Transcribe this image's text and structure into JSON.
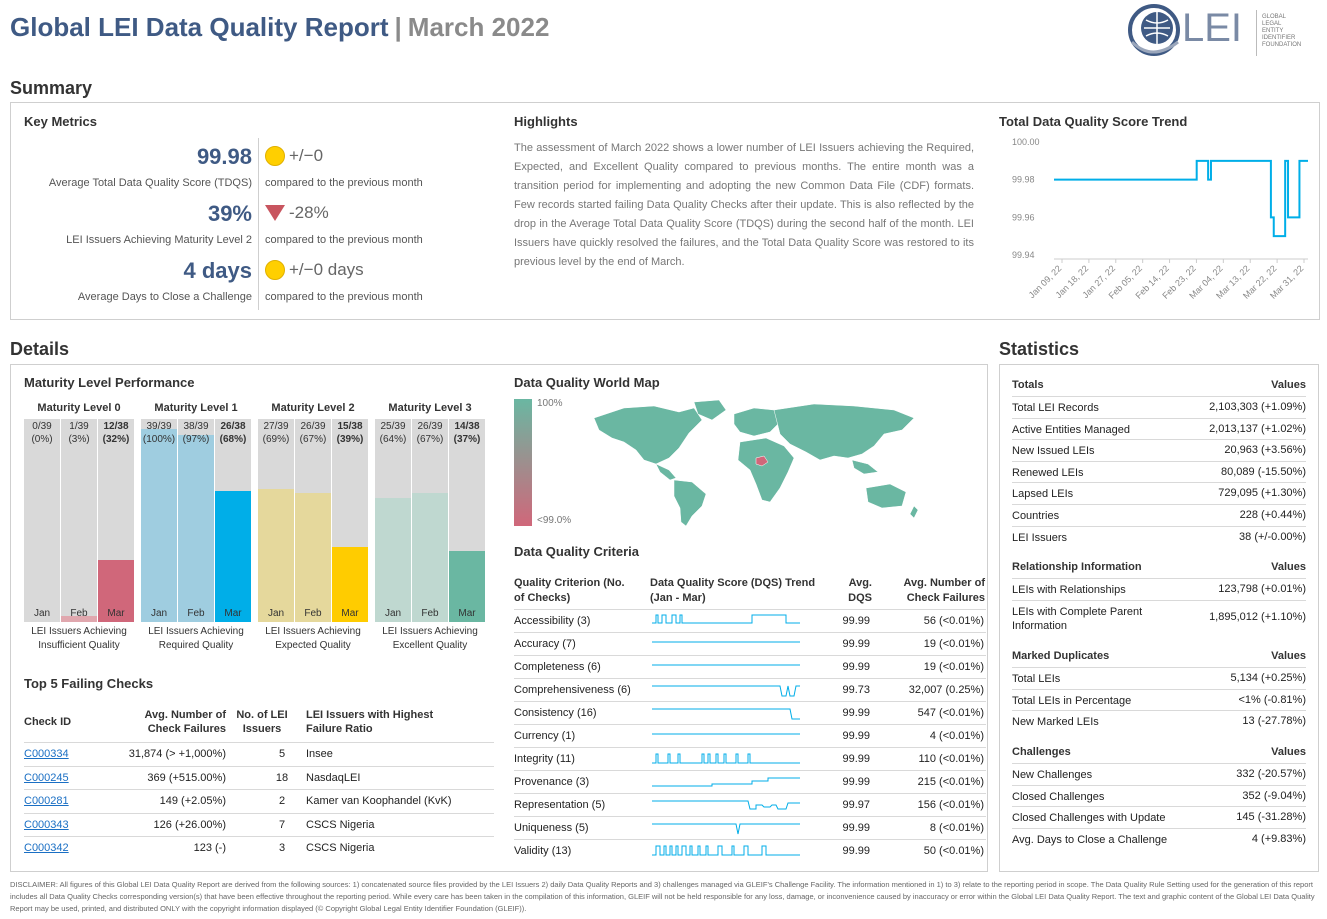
{
  "header": {
    "title": "Global LEI Data Quality Report",
    "separator": "|",
    "subtitle": "March 2022",
    "logo_text": "LEI",
    "logo_small": [
      "GLOBAL",
      "LEGAL",
      "ENTITY",
      "IDENTIFIER",
      "FOUNDATION"
    ]
  },
  "summary": {
    "heading": "Summary",
    "key_metrics": {
      "heading": "Key Metrics",
      "items": [
        {
          "value": "99.98",
          "label": "Average Total Data Quality Score (TDQS)",
          "delta": "+/−0",
          "indicator": "neutral-dot",
          "compare": "compared to the previous month"
        },
        {
          "value": "39%",
          "label": "LEI Issuers Achieving Maturity Level 2",
          "delta": "-28%",
          "indicator": "down-triangle",
          "compare": "compared to the previous month"
        },
        {
          "value": "4 days",
          "label": "Average Days to Close a Challenge",
          "delta": "+/−0 days",
          "indicator": "neutral-dot",
          "compare": "compared to the previous month"
        }
      ]
    },
    "highlights": {
      "heading": "Highlights",
      "text": "The assessment of March 2022 shows a lower number of LEI Issuers achieving the Required, Expected, and Excellent Quality compared to previous months. The entire month was a transition period for implementing and adopting the new Common Data File (CDF) formats. Few records started failing Data Quality Checks after their update. This is also reflected by the drop in the Average Total Data Quality Score (TDQS) during the second half of the month. LEI Issuers have quickly resolved the failures, and the Total Data Quality Score was restored to its previous level by the end of March."
    },
    "trend": {
      "heading": "Total Data Quality Score Trend"
    }
  },
  "chart_data": {
    "type": "line",
    "title": "Total Data Quality Score Trend",
    "y_ticks": [
      "100.00",
      "99.98",
      "99.96",
      "99.94"
    ],
    "ylim": [
      99.94,
      100.0
    ],
    "x_ticks": [
      "Jan 09, 22",
      "Jan 18, 22",
      "Jan 27, 22",
      "Feb 05, 22",
      "Feb 14, 22",
      "Feb 23, 22",
      "Mar 04, 22",
      "Mar 13, 22",
      "Mar 22, 22",
      "Mar 31, 22"
    ],
    "x": [
      "Jan 01",
      "Feb 19",
      "Feb 20",
      "Feb 21",
      "Feb 22",
      "Feb 23",
      "Feb 24",
      "Feb 25",
      "Feb 26",
      "Mar 16",
      "Mar 17",
      "Mar 18",
      "Mar 19",
      "Mar 20",
      "Mar 21",
      "Mar 22",
      "Mar 23",
      "Mar 24",
      "Mar 25",
      "Mar 26",
      "Mar 27",
      "Mar 28",
      "Mar 29",
      "Mar 30",
      "Mar 31"
    ],
    "values": [
      99.98,
      99.98,
      99.99,
      99.99,
      99.99,
      99.99,
      99.98,
      99.99,
      99.99,
      99.99,
      99.99,
      99.96,
      99.95,
      99.95,
      99.95,
      99.95,
      99.99,
      99.96,
      99.96,
      99.96,
      99.96,
      99.99,
      99.99,
      99.99,
      99.99
    ],
    "grid": false
  },
  "details": {
    "heading": "Details",
    "maturity": {
      "heading": "Maturity Level Performance",
      "levels": [
        {
          "title": "Maturity Level 0",
          "caption": [
            "LEI Issuers Achieving",
            "Insufficient Quality"
          ],
          "bars": [
            {
              "top": [
                "0/39",
                "(0%)"
              ],
              "pct": 0,
              "month": "Jan"
            },
            {
              "top": [
                "1/39",
                "(3%)"
              ],
              "pct": 3,
              "month": "Feb"
            },
            {
              "top": [
                "12/38",
                "(32%)"
              ],
              "pct": 32,
              "month": "Mar"
            }
          ]
        },
        {
          "title": "Maturity Level 1",
          "caption": [
            "LEI Issuers Achieving",
            "Required Quality"
          ],
          "bars": [
            {
              "top": [
                "39/39",
                "(100%)"
              ],
              "pct": 100,
              "month": "Jan"
            },
            {
              "top": [
                "38/39",
                "(97%)"
              ],
              "pct": 97,
              "month": "Feb"
            },
            {
              "top": [
                "26/38",
                "(68%)"
              ],
              "pct": 68,
              "month": "Mar"
            }
          ]
        },
        {
          "title": "Maturity Level 2",
          "caption": [
            "LEI Issuers Achieving",
            "Expected Quality"
          ],
          "bars": [
            {
              "top": [
                "27/39",
                "(69%)"
              ],
              "pct": 69,
              "month": "Jan"
            },
            {
              "top": [
                "26/39",
                "(67%)"
              ],
              "pct": 67,
              "month": "Feb"
            },
            {
              "top": [
                "15/38",
                "(39%)"
              ],
              "pct": 39,
              "month": "Mar"
            }
          ]
        },
        {
          "title": "Maturity Level 3",
          "caption": [
            "LEI Issuers Achieving",
            "Excellent Quality"
          ],
          "bars": [
            {
              "top": [
                "25/39",
                "(64%)"
              ],
              "pct": 64,
              "month": "Jan"
            },
            {
              "top": [
                "26/39",
                "(67%)"
              ],
              "pct": 67,
              "month": "Feb"
            },
            {
              "top": [
                "14/38",
                "(37%)"
              ],
              "pct": 37,
              "month": "Mar"
            }
          ]
        }
      ],
      "colors": {
        "l0": [
          "#e0a7ae",
          "#e0a7ae",
          "#d0677a"
        ],
        "l1": [
          "#9fcde0",
          "#9fcde0",
          "#00aee8"
        ],
        "l2": [
          "#e5d89c",
          "#e5d89c",
          "#ffcc00"
        ],
        "l3": [
          "#bfd8d0",
          "#bfd8d0",
          "#6ab7a2"
        ]
      }
    },
    "failing": {
      "heading": "Top 5 Failing Checks",
      "headers": [
        "Check ID",
        "Avg. Number of Check Failures",
        "No. of LEI Issuers",
        "LEI Issuers with Highest Failure Ratio"
      ],
      "rows": [
        {
          "id": "C000334",
          "avg": "31,874 (> +1,000%)",
          "n": "5",
          "issuer": "Insee"
        },
        {
          "id": "C000245",
          "avg": "369 (+515.00%)",
          "n": "18",
          "issuer": "NasdaqLEI"
        },
        {
          "id": "C000281",
          "avg": "149 (+2.05%)",
          "n": "2",
          "issuer": "Kamer van Koophandel (KvK)"
        },
        {
          "id": "C000343",
          "avg": "126 (+26.00%)",
          "n": "7",
          "issuer": "CSCS Nigeria"
        },
        {
          "id": "C000342",
          "avg": "123 (-)",
          "n": "3",
          "issuer": "CSCS Nigeria"
        }
      ]
    },
    "worldmap": {
      "heading": "Data Quality World Map",
      "legend_top": "100%",
      "legend_bottom": "<99.0%"
    },
    "criteria": {
      "heading": "Data Quality Criteria",
      "headers": [
        "Quality Criterion (No. of Checks)",
        "Data Quality Score (DQS) Trend (Jan - Mar)",
        "Avg. DQS",
        "Avg. Number of Check Failures"
      ],
      "rows": [
        {
          "name": "Accessibility (3)",
          "dqs": "99.99",
          "fail": "56 (<0.01%)"
        },
        {
          "name": "Accuracy (7)",
          "dqs": "99.99",
          "fail": "19 (<0.01%)"
        },
        {
          "name": "Completeness (6)",
          "dqs": "99.99",
          "fail": "19 (<0.01%)"
        },
        {
          "name": "Comprehensiveness (6)",
          "dqs": "99.73",
          "fail": "32,007 (0.25%)"
        },
        {
          "name": "Consistency (16)",
          "dqs": "99.99",
          "fail": "547 (<0.01%)"
        },
        {
          "name": "Currency (1)",
          "dqs": "99.99",
          "fail": "4 (<0.01%)"
        },
        {
          "name": "Integrity (11)",
          "dqs": "99.99",
          "fail": "110 (<0.01%)"
        },
        {
          "name": "Provenance (3)",
          "dqs": "99.99",
          "fail": "215 (<0.01%)"
        },
        {
          "name": "Representation (5)",
          "dqs": "99.97",
          "fail": "156 (<0.01%)"
        },
        {
          "name": "Uniqueness (5)",
          "dqs": "99.99",
          "fail": "8 (<0.01%)"
        },
        {
          "name": "Validity (13)",
          "dqs": "99.99",
          "fail": "50 (<0.01%)"
        }
      ]
    }
  },
  "statistics": {
    "heading": "Statistics",
    "groups": [
      {
        "title": "Totals",
        "col": "Values",
        "rows": [
          {
            "k": "Total LEI Records",
            "v": "2,103,303 (+1.09%)"
          },
          {
            "k": "Active Entities Managed",
            "v": "2,013,137 (+1.02%)"
          },
          {
            "k": "New Issued LEIs",
            "v": "20,963 (+3.56%)"
          },
          {
            "k": "Renewed LEIs",
            "v": "80,089 (-15.50%)"
          },
          {
            "k": "Lapsed LEIs",
            "v": "729,095 (+1.30%)"
          },
          {
            "k": "Countries",
            "v": "228 (+0.44%)"
          },
          {
            "k": "LEI Issuers",
            "v": "38 (+/-0.00%)"
          }
        ]
      },
      {
        "title": "Relationship Information",
        "col": "Values",
        "rows": [
          {
            "k": "LEIs with Relationships",
            "v": "123,798 (+0.01%)"
          },
          {
            "k": "LEIs with Complete Parent Information",
            "v": "1,895,012 (+1.10%)"
          }
        ]
      },
      {
        "title": "Marked Duplicates",
        "col": "Values",
        "rows": [
          {
            "k": "Total LEIs",
            "v": "5,134 (+0.25%)"
          },
          {
            "k": "Total LEIs in Percentage",
            "v": "<1% (-0.81%)"
          },
          {
            "k": "New Marked LEIs",
            "v": "13 (-27.78%)"
          }
        ]
      },
      {
        "title": "Challenges",
        "col": "Values",
        "rows": [
          {
            "k": "New Challenges",
            "v": "332 (-20.57%)"
          },
          {
            "k": "Closed Challenges",
            "v": "352 (-9.04%)"
          },
          {
            "k": "Closed Challenges with Update",
            "v": "145 (-31.28%)"
          },
          {
            "k": "Avg. Days to Close a Challenge",
            "v": "4 (+9.83%)"
          }
        ]
      }
    ]
  },
  "disclaimer": "DISCLAIMER: All figures of this Global LEI Data Quality Report are derived from the following sources: 1) concatenated source files provided by the LEI Issuers 2) daily Data Quality Reports and 3) challenges managed via GLEIF's Challenge Facility. The information mentioned in 1) to 3) relate to the reporting period in scope. The Data Quality Rule Setting used for the generation of this report includes all Data Quality Checks corresponding version(s) that have been effective throughout the reporting period. While every care has been taken in the compilation of this information, GLEIF will not be held responsible for any loss, damage, or inconvenience caused by inaccuracy or error within the Global LEI Data Quality Report. The text and graphic content of the Global LEI Data Quality Report may be used, printed, and distributed ONLY with the copyright information displayed (© Copyright Global Legal Entity Identifier Foundation (GLEIF))."
}
